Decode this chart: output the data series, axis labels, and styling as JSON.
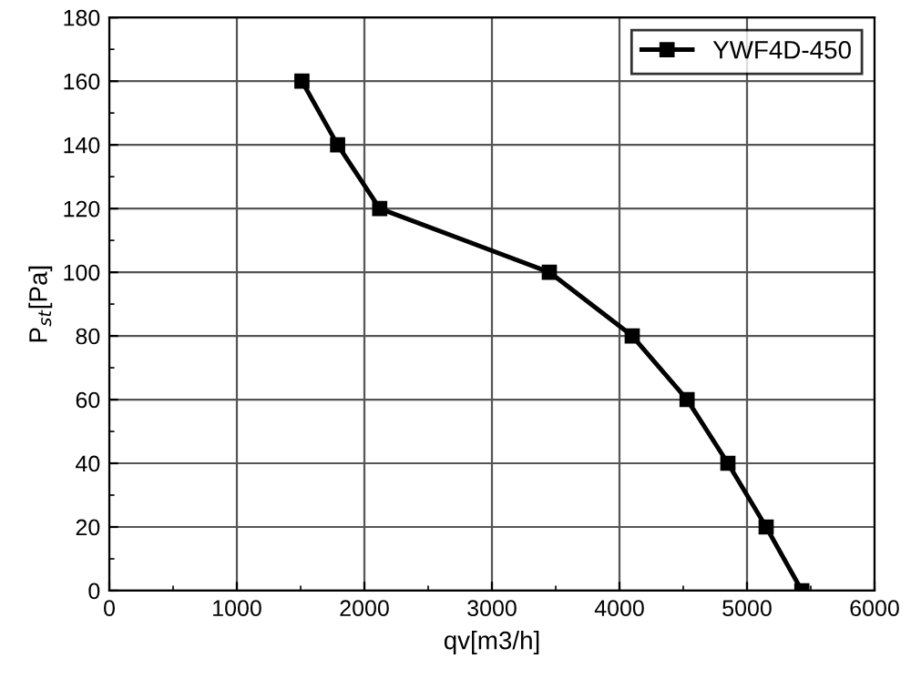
{
  "chart_data": {
    "type": "line",
    "xlabel": "qv[m3/h]",
    "ylabel": "P$_{st}$[Pa]",
    "x": [
      1510,
      1790,
      2120,
      3450,
      4100,
      4530,
      4850,
      5150,
      5430
    ],
    "series": [
      {
        "name": "YWF4D-450",
        "color": "#000000",
        "values": [
          160,
          140,
          120,
          100,
          80,
          60,
          40,
          20,
          0
        ]
      }
    ],
    "xlim": [
      0,
      6000
    ],
    "xticks": [
      0,
      1000,
      2000,
      3000,
      4000,
      5000,
      6000
    ],
    "ylim": [
      0,
      180
    ],
    "yticks": [
      0,
      20,
      40,
      60,
      80,
      100,
      120,
      140,
      160,
      180
    ],
    "grid": true,
    "legend": "top right",
    "marker": "square",
    "line_style": "solid"
  }
}
